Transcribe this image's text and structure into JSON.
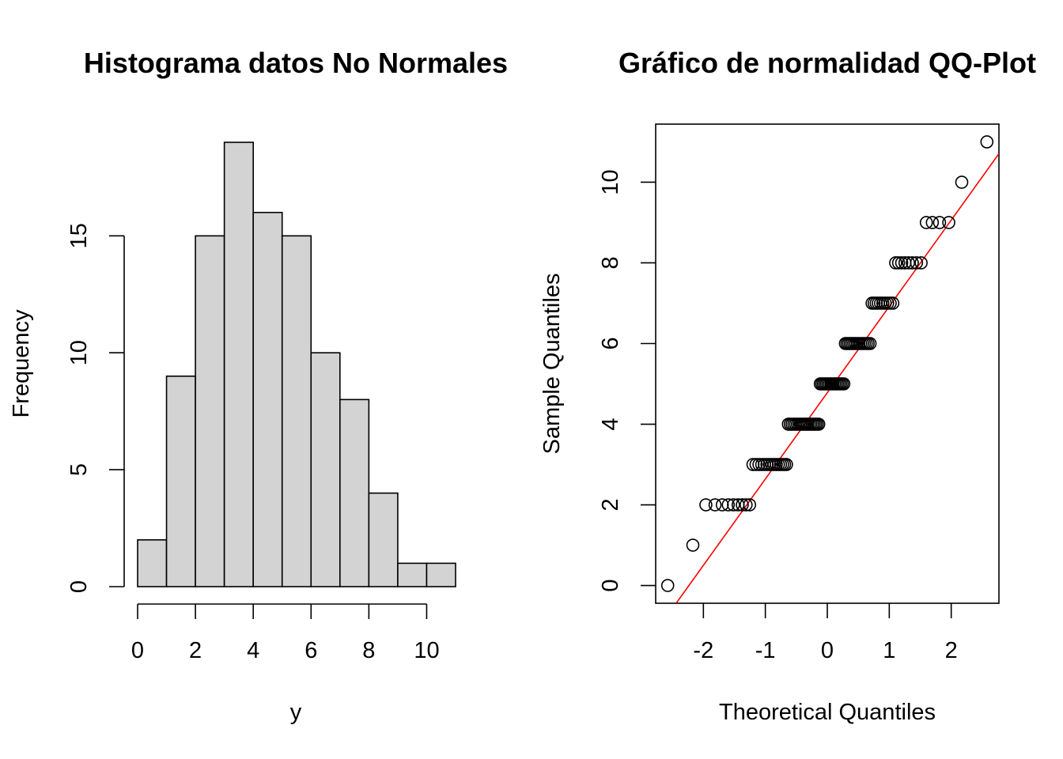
{
  "chart_data": [
    {
      "type": "bar",
      "title": "Histograma datos No Normales",
      "xlabel": "y",
      "ylabel": "Frequency",
      "bins": [
        [
          0,
          1
        ],
        [
          1,
          2
        ],
        [
          2,
          3
        ],
        [
          3,
          4
        ],
        [
          4,
          5
        ],
        [
          5,
          6
        ],
        [
          6,
          7
        ],
        [
          7,
          8
        ],
        [
          8,
          9
        ],
        [
          9,
          10
        ],
        [
          10,
          11
        ]
      ],
      "values": [
        2,
        9,
        15,
        19,
        16,
        15,
        10,
        8,
        4,
        1,
        1
      ],
      "xlim": [
        0,
        11
      ],
      "ylim": [
        0,
        19
      ],
      "x_ticks": [
        0,
        2,
        4,
        6,
        8,
        10
      ],
      "x_tick_labels": [
        "0",
        "2",
        "4",
        "6",
        "8",
        "10"
      ],
      "y_ticks": [
        0,
        5,
        10,
        15
      ],
      "y_tick_labels": [
        "0",
        "5",
        "10",
        "15"
      ],
      "bar_fill": "#d3d3d3",
      "bar_stroke": "#000000",
      "grid": false
    },
    {
      "type": "scatter",
      "title": "Gráfico de normalidad QQ-Plot",
      "xlabel": "Theoretical Quantiles",
      "ylabel": "Sample Quantiles",
      "xlim": [
        -2.77,
        2.77
      ],
      "ylim": [
        -0.44,
        11.44
      ],
      "x_ticks": [
        -2,
        -1,
        0,
        1,
        2
      ],
      "x_tick_labels": [
        "-2",
        "-1",
        "0",
        "1",
        "2"
      ],
      "y_ticks": [
        0,
        2,
        4,
        6,
        8,
        10
      ],
      "y_tick_labels": [
        "0",
        "2",
        "4",
        "6",
        "8",
        "10"
      ],
      "counts_by_value": [
        {
          "y": 0,
          "count": 1
        },
        {
          "y": 1,
          "count": 1
        },
        {
          "y": 2,
          "count": 9
        },
        {
          "y": 3,
          "count": 15
        },
        {
          "y": 4,
          "count": 19
        },
        {
          "y": 5,
          "count": 16
        },
        {
          "y": 6,
          "count": 15
        },
        {
          "y": 7,
          "count": 10
        },
        {
          "y": 8,
          "count": 8
        },
        {
          "y": 9,
          "count": 4
        },
        {
          "y": 10,
          "count": 1
        },
        {
          "y": 11,
          "count": 1
        }
      ],
      "reference_line": {
        "intercept": 4.78,
        "slope": 2.14,
        "color": "#ff0000"
      },
      "point_stroke": "#000000",
      "box": true,
      "grid": false
    }
  ]
}
